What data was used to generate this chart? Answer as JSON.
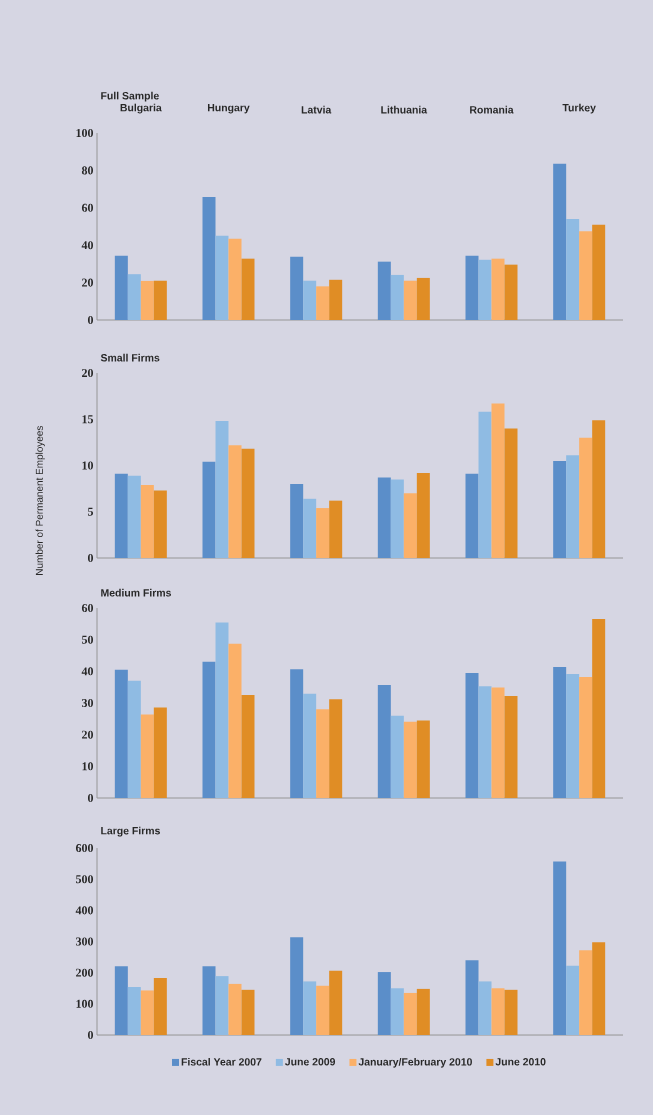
{
  "chart_data": [
    {
      "type": "bar",
      "title": "Full Sample",
      "categories": [
        "Bulgaria",
        "Hungary",
        "Latvia",
        "Lithuania",
        "Romania",
        "Turkey"
      ],
      "ylim": [
        0,
        100
      ],
      "yticks": [
        0,
        20,
        40,
        60,
        80,
        100
      ],
      "series": [
        {
          "color": "#5b8ec9",
          "values": [
            34.4,
            65.8,
            33.8,
            31.2,
            34.4,
            83.5
          ]
        },
        {
          "color": "#8fbbe3",
          "values": [
            24.5,
            45,
            21,
            24.1,
            32.2,
            54
          ]
        },
        {
          "color": "#fbb068",
          "values": [
            20.9,
            43.5,
            18,
            21,
            32.8,
            47.5
          ]
        },
        {
          "color": "#e08d25",
          "values": [
            21,
            32.8,
            21.5,
            22.5,
            29.6,
            51
          ]
        }
      ]
    },
    {
      "type": "bar",
      "title": "Small Firms",
      "ylabel": "Number of Permanent Employees",
      "categories": [
        null,
        null,
        null,
        null,
        null,
        null
      ],
      "tick_labels": "y",
      "ylim": [
        0,
        20
      ],
      "yticks": [
        0,
        5,
        10,
        15,
        20
      ],
      "series": [
        {
          "color": "#5b8ec9",
          "values": [
            9.1,
            10.4,
            8.0,
            8.7,
            9.1,
            10.5
          ]
        },
        {
          "color": "#8fbbe3",
          "values": [
            8.9,
            14.8,
            6.4,
            8.5,
            15.8,
            11.1
          ]
        },
        {
          "color": "#fbb068",
          "values": [
            7.9,
            12.2,
            5.4,
            7.0,
            16.7,
            13.0
          ]
        },
        {
          "color": "#e08d25",
          "values": [
            7.3,
            11.8,
            6.2,
            9.2,
            14.0,
            14.9
          ]
        }
      ]
    },
    {
      "type": "bar",
      "title": "Medium Firms",
      "categories": [
        null,
        null,
        null,
        null,
        null,
        null
      ],
      "tick_labels": "y",
      "ylim": [
        0,
        60
      ],
      "yticks": [
        0,
        10,
        20,
        30,
        40,
        50,
        60
      ],
      "series": [
        {
          "color": "#5b8ec9",
          "values": [
            40.5,
            43,
            40.7,
            35.7,
            39.5,
            41.4
          ]
        },
        {
          "color": "#8fbbe3",
          "values": [
            37,
            55.4,
            32.9,
            26,
            35.3,
            39.2
          ]
        },
        {
          "color": "#fbb068",
          "values": [
            26.4,
            48.7,
            28,
            24.1,
            34.9,
            38.2
          ]
        },
        {
          "color": "#e08d25",
          "values": [
            28.6,
            32.5,
            31.2,
            24.5,
            32.2,
            56.5
          ]
        }
      ]
    },
    {
      "type": "bar",
      "title": "Large Firms",
      "categories": [
        null,
        null,
        null,
        null,
        null,
        null
      ],
      "tick_labels": "y",
      "legend": "bottom",
      "ylim": [
        0,
        600
      ],
      "yticks": [
        0,
        100,
        200,
        300,
        400,
        500,
        600
      ],
      "series": [
        {
          "name": "Fiscal Year 2007",
          "color": "#5b8ec9",
          "values": [
            221,
            221,
            314,
            202,
            240,
            557
          ]
        },
        {
          "name": "June 2009",
          "color": "#8fbbe3",
          "values": [
            154,
            189,
            172,
            150,
            172,
            222
          ]
        },
        {
          "name": "January/February 2010",
          "color": "#fbb068",
          "values": [
            143,
            164,
            158,
            135,
            150,
            272
          ]
        },
        {
          "name": "June 2010",
          "color": "#e08d25",
          "values": [
            183,
            145,
            206,
            148,
            145,
            298
          ]
        }
      ]
    }
  ]
}
